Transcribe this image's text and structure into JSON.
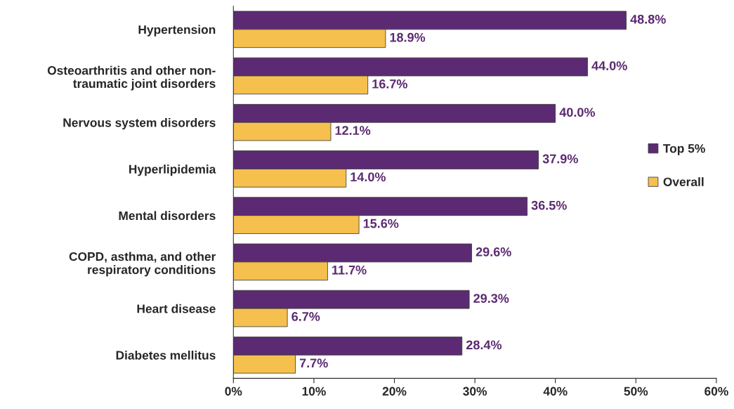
{
  "chart_data": {
    "type": "bar",
    "orientation": "horizontal",
    "categories": [
      "Hypertension",
      "Osteoarthritis and other non-\ntraumatic joint disorders",
      "Nervous system disorders",
      "Hyperlipidemia",
      "Mental disorders",
      "COPD, asthma, and other\nrespiratory conditions",
      "Heart disease",
      "Diabetes mellitus"
    ],
    "series": [
      {
        "name": "Top 5%",
        "color": "#5c2a72",
        "values": [
          48.8,
          44.0,
          40.0,
          37.9,
          36.5,
          29.6,
          29.3,
          28.4
        ],
        "value_labels": [
          "48.8%",
          "44.0%",
          "40.0%",
          "37.9%",
          "36.5%",
          "29.6%",
          "29.3%",
          "28.4%"
        ]
      },
      {
        "name": "Overall",
        "color": "#f6c04e",
        "values": [
          18.9,
          16.7,
          12.1,
          14.0,
          15.6,
          11.7,
          6.7,
          7.7
        ],
        "value_labels": [
          "18.9%",
          "16.7%",
          "12.1%",
          "14.0%",
          "15.6%",
          "11.7%",
          "6.7%",
          "7.7%"
        ]
      }
    ],
    "xlim": [
      0,
      60
    ],
    "xticks": [
      {
        "value": 0,
        "label": "0%"
      },
      {
        "value": 10,
        "label": "10%"
      },
      {
        "value": 20,
        "label": "20%"
      },
      {
        "value": 30,
        "label": "30%"
      },
      {
        "value": 40,
        "label": "40%"
      },
      {
        "value": 50,
        "label": "50%"
      },
      {
        "value": 60,
        "label": "60%"
      }
    ],
    "grid": false,
    "legend": "right"
  }
}
